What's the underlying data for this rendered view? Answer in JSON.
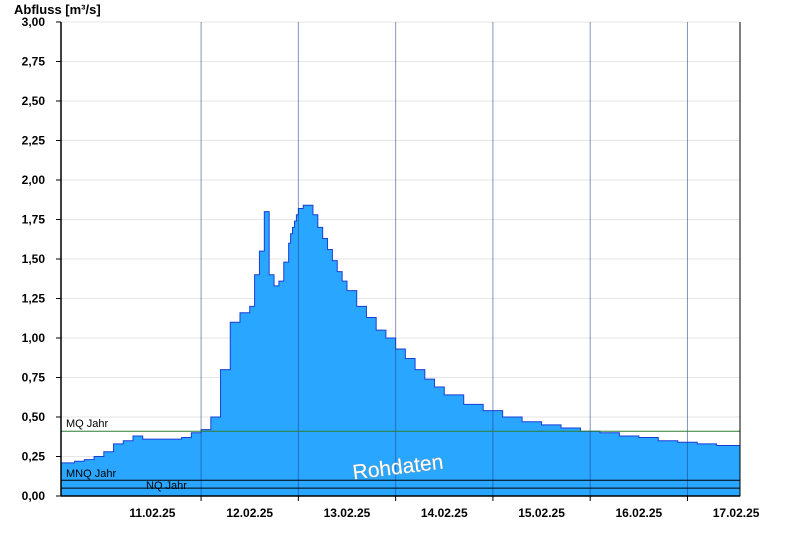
{
  "chart_data": {
    "type": "area",
    "ylabel": "Abfluss [m³/s]",
    "ylim": [
      0,
      3.0
    ],
    "y_ticks": [
      "0,00",
      "0,25",
      "0,50",
      "0,75",
      "1,00",
      "1,25",
      "1,50",
      "1,75",
      "2,00",
      "2,25",
      "2,50",
      "2,75",
      "3,00"
    ],
    "x_unit": "days from 10.02.25 00:00",
    "xlim": [
      0.06,
      7.04
    ],
    "x_ticks": [
      {
        "label": "11.02.25",
        "at": 1.0
      },
      {
        "label": "12.02.25",
        "at": 2.0
      },
      {
        "label": "13.02.25",
        "at": 3.0
      },
      {
        "label": "14.02.25",
        "at": 4.0
      },
      {
        "label": "15.02.25",
        "at": 5.0
      },
      {
        "label": "16.02.25",
        "at": 6.0
      },
      {
        "label": "17.02.25",
        "at": 7.0
      }
    ],
    "grid": true,
    "reference_lines": [
      {
        "name": "MQ Jahr",
        "value": 0.41,
        "color": "#2e7d32"
      },
      {
        "name": "MNQ Jahr",
        "value": 0.1,
        "color": "#000000"
      },
      {
        "name": "NQ Jahr",
        "value": 0.05,
        "color": "#000000"
      }
    ],
    "series": [
      {
        "color": "#29a6ff",
        "x": [
          0.06,
          0.2,
          0.3,
          0.4,
          0.5,
          0.6,
          0.7,
          0.8,
          0.9,
          1.0,
          1.1,
          1.2,
          1.3,
          1.4,
          1.5,
          1.6,
          1.7,
          1.8,
          1.9,
          2.0,
          2.05,
          2.1,
          2.15,
          2.2,
          2.25,
          2.3,
          2.35,
          2.4,
          2.42,
          2.44,
          2.46,
          2.48,
          2.5,
          2.55,
          2.6,
          2.65,
          2.7,
          2.75,
          2.8,
          2.85,
          2.9,
          2.95,
          3.0,
          3.1,
          3.2,
          3.3,
          3.4,
          3.5,
          3.6,
          3.7,
          3.8,
          3.9,
          4.0,
          4.2,
          4.4,
          4.6,
          4.8,
          5.0,
          5.2,
          5.4,
          5.6,
          5.8,
          6.0,
          6.2,
          6.4,
          6.6,
          6.8,
          7.04
        ],
        "values": [
          0.21,
          0.22,
          0.23,
          0.25,
          0.28,
          0.33,
          0.35,
          0.38,
          0.36,
          0.36,
          0.36,
          0.36,
          0.37,
          0.4,
          0.42,
          0.5,
          0.8,
          1.1,
          1.16,
          1.2,
          1.4,
          1.55,
          1.8,
          1.4,
          1.33,
          1.36,
          1.48,
          1.6,
          1.66,
          1.7,
          1.74,
          1.78,
          1.82,
          1.84,
          1.84,
          1.78,
          1.7,
          1.63,
          1.56,
          1.49,
          1.42,
          1.36,
          1.3,
          1.2,
          1.13,
          1.05,
          1.0,
          0.93,
          0.87,
          0.8,
          0.74,
          0.69,
          0.64,
          0.58,
          0.54,
          0.5,
          0.47,
          0.45,
          0.43,
          0.41,
          0.4,
          0.38,
          0.37,
          0.35,
          0.34,
          0.33,
          0.32,
          0.31
        ]
      }
    ],
    "watermark": "Rohdaten"
  }
}
